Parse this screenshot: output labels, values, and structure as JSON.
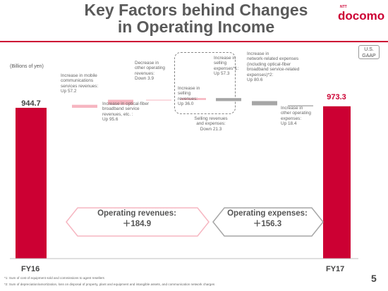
{
  "header": {
    "title": "Key Factors behind Changes\nin Operating Income",
    "logo_small": "NTT",
    "logo_word": "docomo",
    "accounting_badge": "U.S.\nGAAP"
  },
  "units_label": "(Billions of yen)",
  "chart_data": {
    "type": "bar",
    "subtype": "waterfall",
    "ylabel": "(Billions of yen)",
    "start": {
      "label": "FY16",
      "value": 944.7,
      "value_label": "944.7"
    },
    "end": {
      "label": "FY17",
      "value": 973.3,
      "value_label": "973.3"
    },
    "steps": [
      {
        "text": "Increase in mobile\ncommunications\nservices revenues:\nUp 57.2",
        "delta": 57.2,
        "kind": "revenue"
      },
      {
        "text": "Increase in optical-fiber\nbroadband service\nrevenues, etc. :\nUp 95.6",
        "delta": 95.6,
        "kind": "revenue"
      },
      {
        "text": "Decrease in\nother operating\nrevenues:\nDown 3.9",
        "delta": -3.9,
        "kind": "revenue"
      },
      {
        "text": "Increase in\nselling\nrevenues:\nUp 36.0",
        "delta": 36.0,
        "kind": "revenue"
      },
      {
        "text": "Increase in\nselling\nexpenses*1:\nUp 57.3",
        "delta": -57.3,
        "kind": "expense"
      },
      {
        "text": "Increase in\nnetwork-related  expenses\n(including optical-fiber\nbroadband  service-related\nexpenses)*2:\nUp 80.6",
        "delta": -80.6,
        "kind": "expense"
      },
      {
        "text": "Increase in\nother operating\nexpenses:\nUp 18.4",
        "delta": -18.4,
        "kind": "expense"
      }
    ],
    "group_note": "Selling revenues\nand expenses:\nDown 21.3",
    "colors": {
      "total": "#cc0033",
      "revenue": "#f6b6c1",
      "expense": "#a6a6a6"
    }
  },
  "summary": {
    "revenues_label": "Operating revenues:",
    "revenues_value": "＋184.9",
    "expenses_label": "Operating expenses:",
    "expenses_value": "＋156.3"
  },
  "footnotes": {
    "fn1": "*1: Sum of cost of equipment sold and commissions to agent resellers",
    "fn2": "*2: Sum of depreciation/amortization, loss on disposal of property, plant and equipment and intangible assets, and communication network charges"
  },
  "page_number": "5"
}
